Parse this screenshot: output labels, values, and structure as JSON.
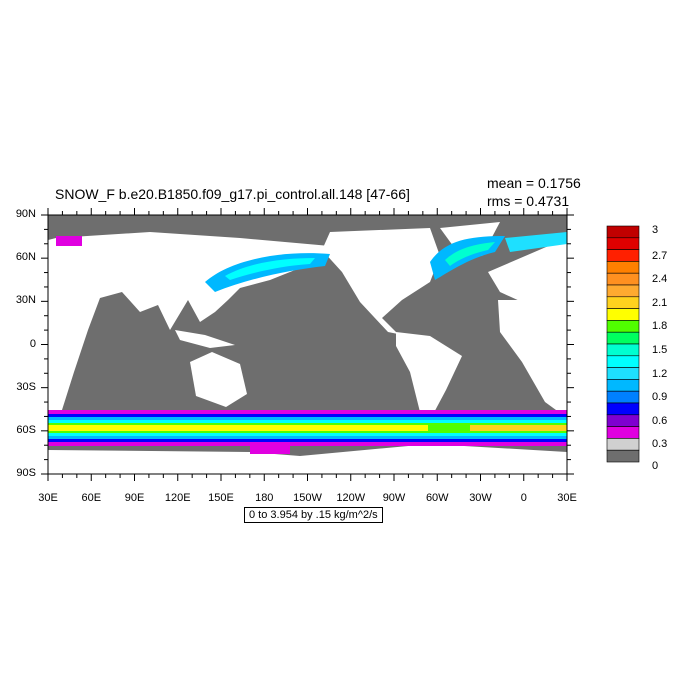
{
  "title": "SNOW_F b.e20.B1850.f09_g17.pi_control.all.148 [47-66]",
  "stats": {
    "mean": "mean = 0.1756",
    "rms": "rms = 0.4731"
  },
  "lat_labels": [
    "90N",
    "60N",
    "30N",
    "0",
    "30S",
    "60S",
    "90S"
  ],
  "lon_labels": [
    "30E",
    "60E",
    "90E",
    "120E",
    "150E",
    "180",
    "150W",
    "120W",
    "90W",
    "60W",
    "30W",
    "0",
    "30E"
  ],
  "colorbar": {
    "labels": [
      "3",
      "2.7",
      "2.4",
      "2.1",
      "1.8",
      "1.5",
      "1.2",
      "0.9",
      "0.6",
      "0.3",
      "0"
    ],
    "colors": [
      "#c00000",
      "#e00000",
      "#ff2000",
      "#ff8000",
      "#ff9020",
      "#ffaa30",
      "#ffd21e",
      "#ffff00",
      "#50ff00",
      "#00ff60",
      "#00ffd0",
      "#00ffff",
      "#1ee0ff",
      "#00b8ff",
      "#0080ff",
      "#0000ff",
      "#7f00d0",
      "#e000e0",
      "#d0d0d0",
      "#6e6e6e"
    ]
  },
  "info": "0 to 3.954 by .15 kg/m^2/s",
  "colors": {
    "ocean": "#6e6e6e",
    "land": "#ffffff"
  }
}
